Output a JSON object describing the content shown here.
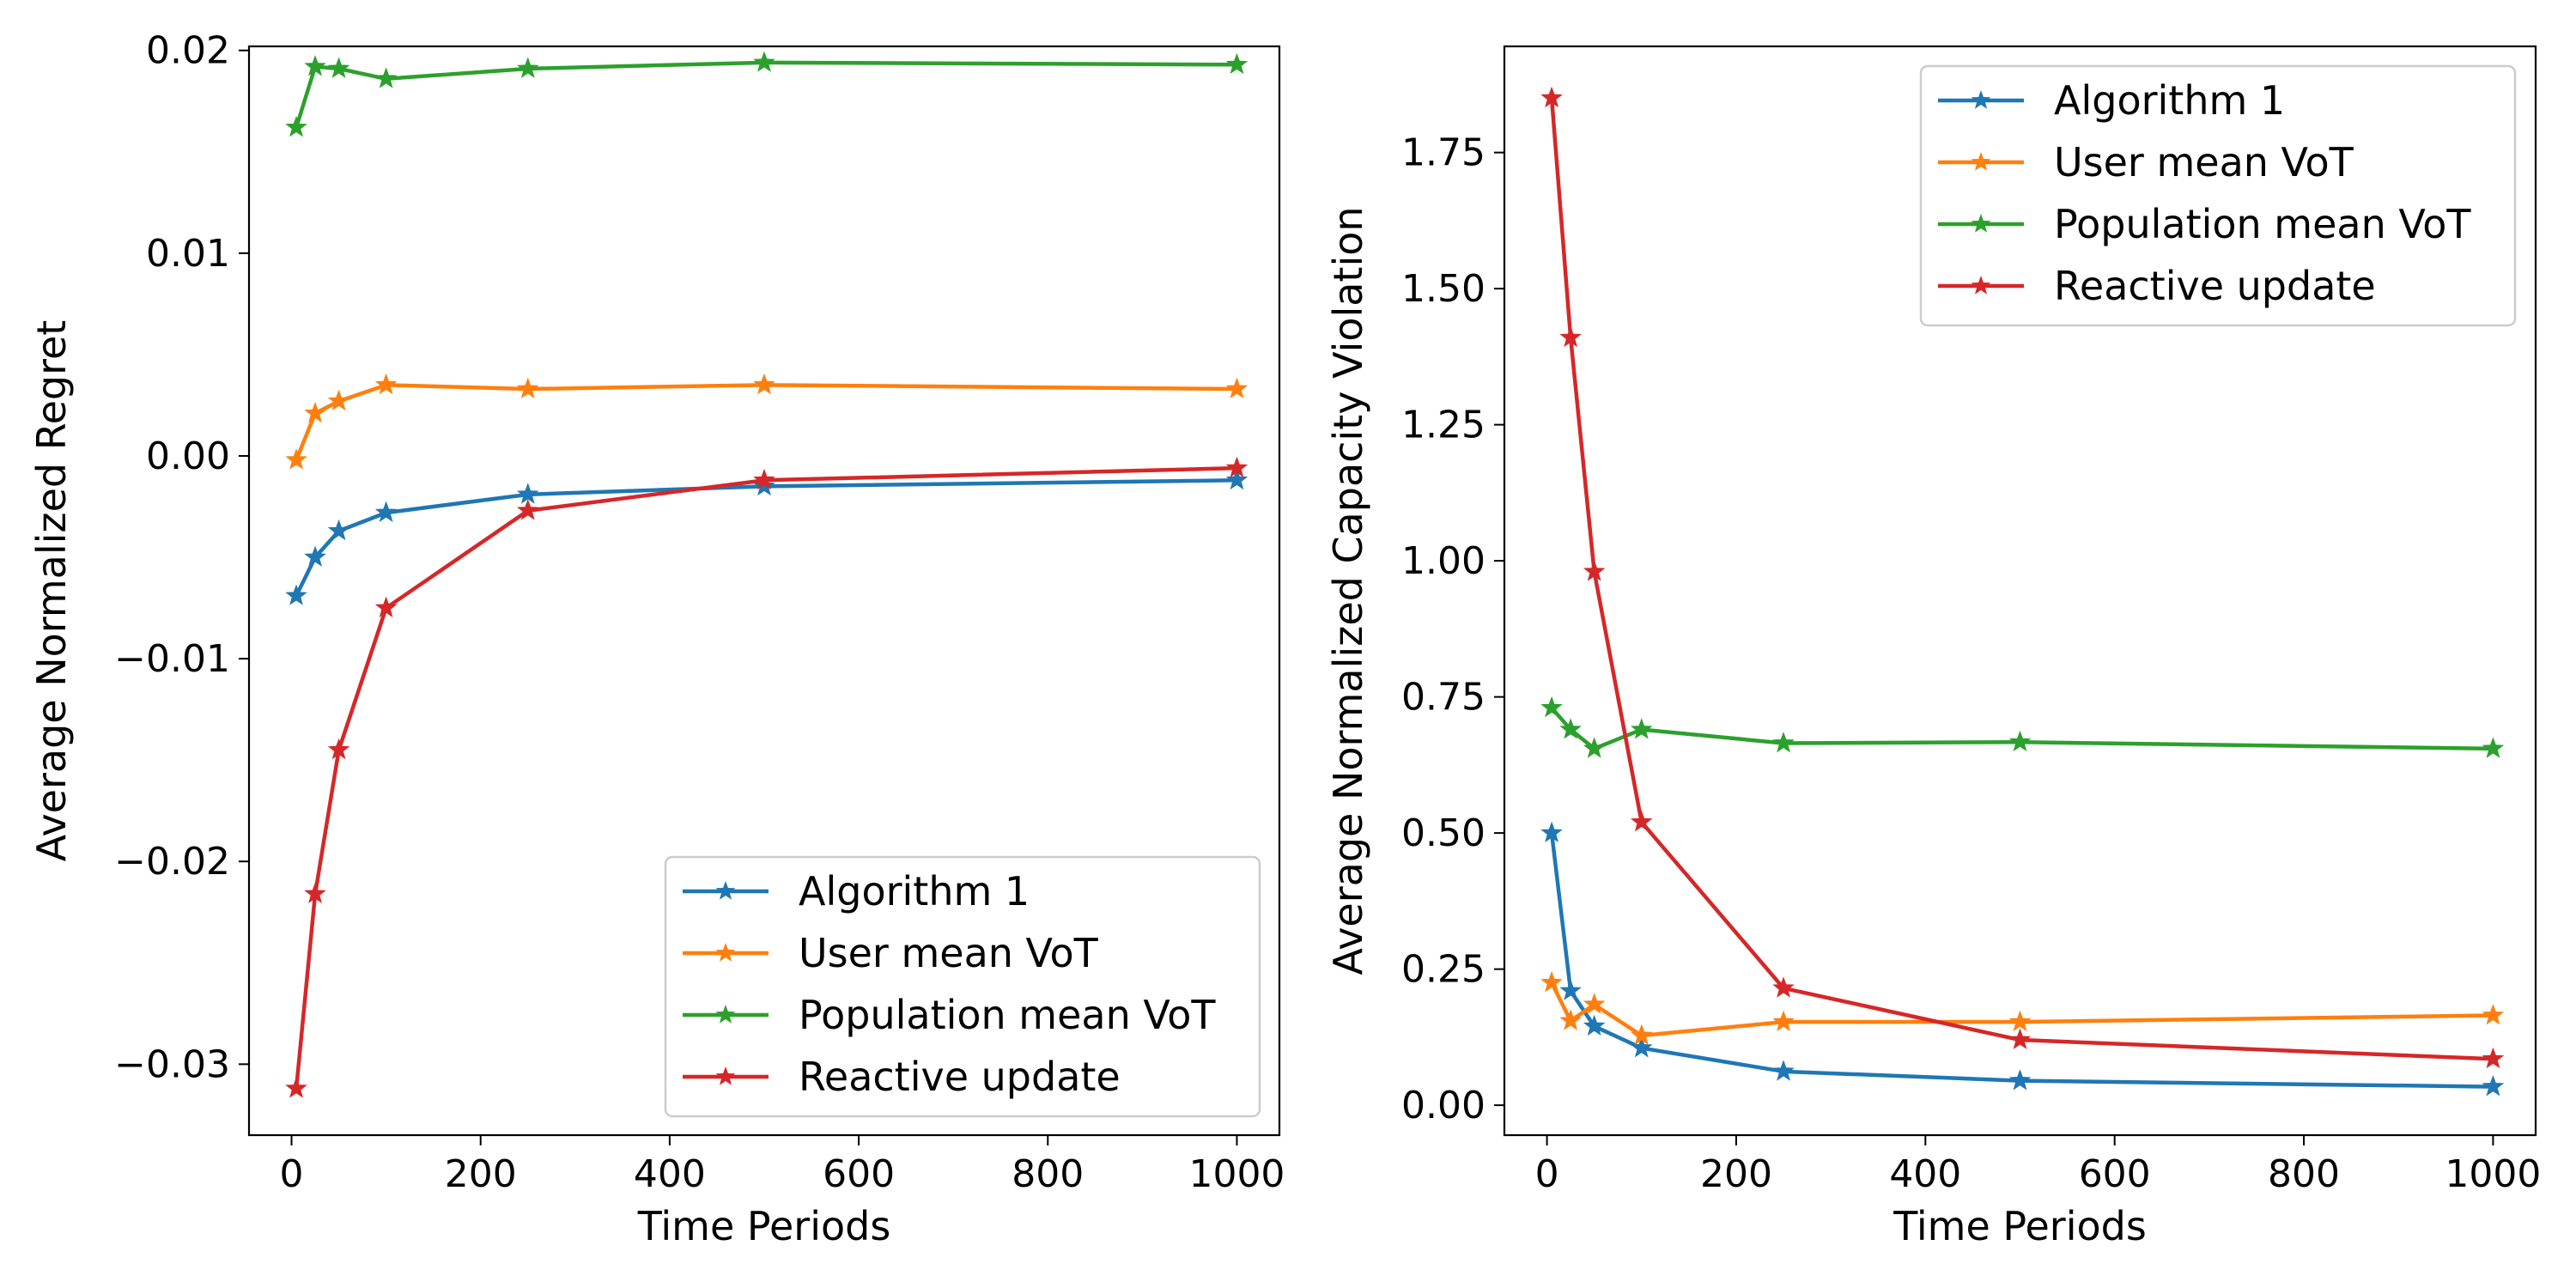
{
  "chart_data": [
    {
      "type": "line",
      "title": "",
      "xlabel": "Time Periods",
      "ylabel": "Average Normalized Regret",
      "xlim": [
        -45,
        1045
      ],
      "ylim": [
        -0.0335,
        0.0202
      ],
      "xticks": [
        0,
        200,
        400,
        600,
        800,
        1000
      ],
      "yticks": [
        -0.03,
        -0.02,
        -0.01,
        0.0,
        0.01,
        0.02
      ],
      "xtick_labels": [
        "0",
        "200",
        "400",
        "600",
        "800",
        "1000"
      ],
      "ytick_labels": [
        "−0.03",
        "−0.02",
        "−0.01",
        "0.00",
        "0.01",
        "0.02"
      ],
      "legend_position": "lower-right",
      "x": [
        5,
        25,
        50,
        100,
        250,
        500,
        1000
      ],
      "series": [
        {
          "name": "Algorithm 1",
          "color": "#1f77b4",
          "values": [
            -0.0069,
            -0.005,
            -0.0037,
            -0.0028,
            -0.0019,
            -0.0015,
            -0.0012
          ]
        },
        {
          "name": "User mean VoT",
          "color": "#ff7f0e",
          "values": [
            -0.0002,
            0.0021,
            0.0027,
            0.0035,
            0.0033,
            0.0035,
            0.0033
          ]
        },
        {
          "name": "Population mean VoT",
          "color": "#2ca02c",
          "values": [
            0.0162,
            0.0192,
            0.0191,
            0.0186,
            0.0191,
            0.0194,
            0.0193
          ]
        },
        {
          "name": "Reactive update",
          "color": "#d62728",
          "values": [
            -0.0312,
            -0.0216,
            -0.0145,
            -0.0075,
            -0.0027,
            -0.0012,
            -0.0006
          ]
        }
      ]
    },
    {
      "type": "line",
      "title": "",
      "xlabel": "Time Periods",
      "ylabel": "Average Normalized Capacity Violation",
      "xlim": [
        -45,
        1045
      ],
      "ylim": [
        -0.055,
        1.945
      ],
      "xticks": [
        0,
        200,
        400,
        600,
        800,
        1000
      ],
      "yticks": [
        0.0,
        0.25,
        0.5,
        0.75,
        1.0,
        1.25,
        1.5,
        1.75
      ],
      "xtick_labels": [
        "0",
        "200",
        "400",
        "600",
        "800",
        "1000"
      ],
      "ytick_labels": [
        "0.00",
        "0.25",
        "0.50",
        "0.75",
        "1.00",
        "1.25",
        "1.50",
        "1.75"
      ],
      "legend_position": "upper-right",
      "x": [
        5,
        25,
        50,
        100,
        250,
        500,
        1000
      ],
      "series": [
        {
          "name": "Algorithm 1",
          "color": "#1f77b4",
          "values": [
            0.5,
            0.21,
            0.145,
            0.105,
            0.062,
            0.045,
            0.034
          ]
        },
        {
          "name": "User mean VoT",
          "color": "#ff7f0e",
          "values": [
            0.225,
            0.155,
            0.185,
            0.128,
            0.153,
            0.153,
            0.165
          ]
        },
        {
          "name": "Population mean VoT",
          "color": "#2ca02c",
          "values": [
            0.73,
            0.69,
            0.655,
            0.69,
            0.665,
            0.667,
            0.655
          ]
        },
        {
          "name": "Reactive update",
          "color": "#d62728",
          "values": [
            1.85,
            1.41,
            0.98,
            0.52,
            0.215,
            0.12,
            0.085
          ]
        }
      ]
    }
  ]
}
